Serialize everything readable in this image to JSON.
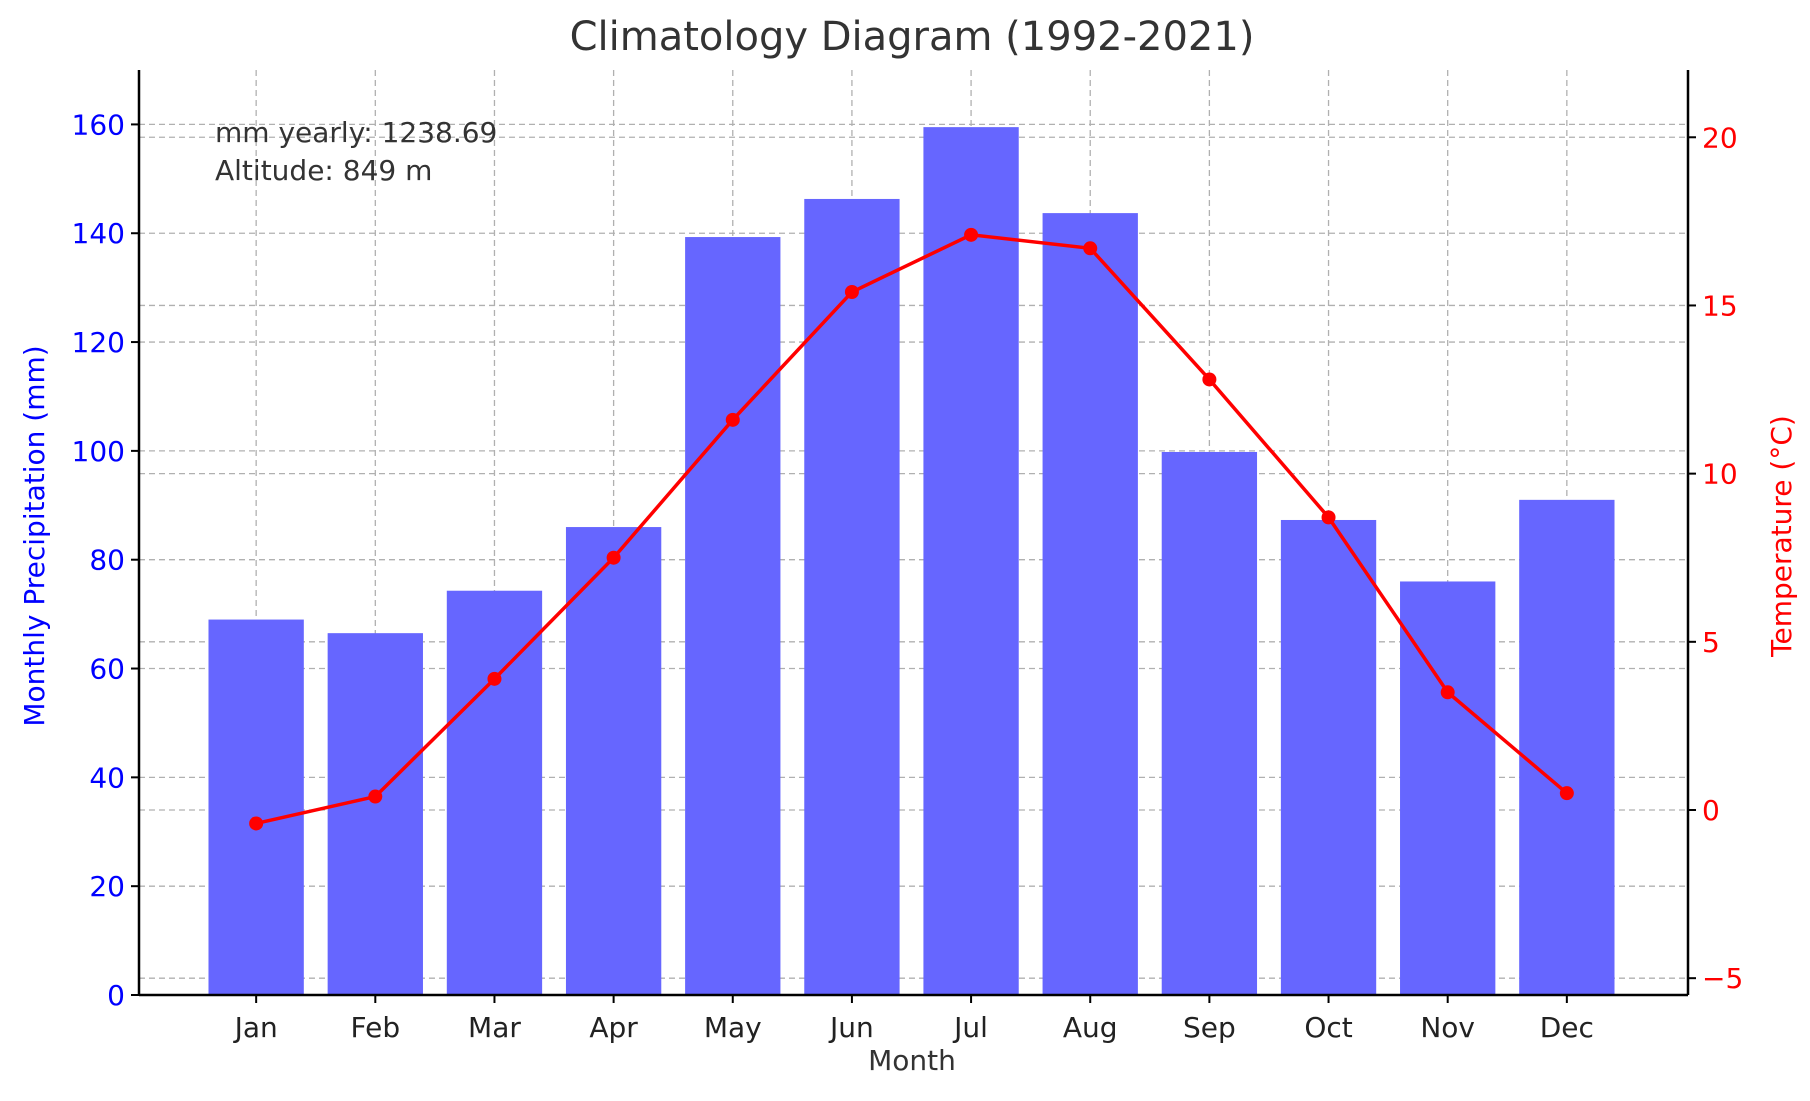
{
  "chart_data": {
    "type": "bar",
    "title": "Climatology Diagram (1992-2021)",
    "xlabel": "Month",
    "ylabel_left": "Monthly Precipitation (mm)",
    "ylabel_right": "Temperature (°C)",
    "categories": [
      "Jan",
      "Feb",
      "Mar",
      "Apr",
      "May",
      "Jun",
      "Jul",
      "Aug",
      "Sep",
      "Oct",
      "Nov",
      "Dec"
    ],
    "series": [
      {
        "type": "bar",
        "axis": "left",
        "color": "#6666ff",
        "values": [
          69,
          66.5,
          74.3,
          86,
          139.3,
          146.3,
          159.5,
          143.7,
          99.8,
          87.3,
          76,
          91
        ]
      },
      {
        "type": "line",
        "axis": "right",
        "color": "#ff0000",
        "values": [
          -0.4,
          0.4,
          3.9,
          7.5,
          11.6,
          15.4,
          17.1,
          16.7,
          12.8,
          8.7,
          3.5,
          0.5
        ]
      }
    ],
    "ylim_left": [
      0,
      170
    ],
    "ylim_right": [
      -5.5,
      22
    ],
    "yticks_left": [
      "0",
      "20",
      "40",
      "60",
      "80",
      "100",
      "120",
      "140",
      "160"
    ],
    "yticks_right": [
      "−5",
      "0",
      "5",
      "10",
      "15",
      "20"
    ],
    "grid": true,
    "annotations": [
      "mm yearly: 1238.69",
      "Altitude: 849 m"
    ]
  }
}
